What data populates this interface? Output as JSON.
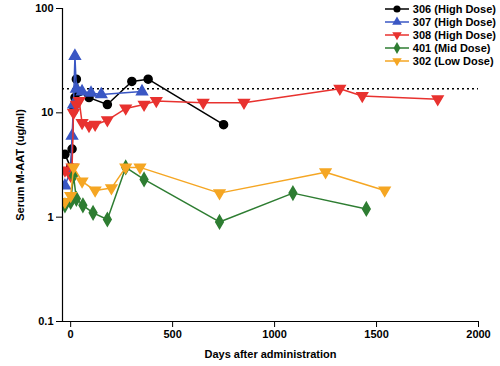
{
  "chart_data": {
    "type": "line",
    "xlabel": "Days after administration",
    "ylabel": "Serum M-AAT (ug/ml)",
    "log": "y",
    "legend": "top-right",
    "xlim": [
      -40,
      2000
    ],
    "xticks": [
      0,
      500,
      1000,
      1500,
      2000
    ],
    "ylim": [
      0.1,
      100
    ],
    "yticks": [
      0.1,
      1,
      10,
      100
    ],
    "reference_line": {
      "value": 17,
      "line_style": "dotted"
    },
    "series": [
      {
        "name": "306 (High Dose)",
        "color": "#000000",
        "marker": "circle",
        "x": [
          -28,
          0,
          7,
          14,
          21,
          28,
          42,
          90,
          180,
          300,
          380,
          750
        ],
        "values": [
          4,
          3,
          4.5,
          10.5,
          14,
          21,
          16,
          14,
          12,
          20,
          21,
          7.7
        ]
      },
      {
        "name": "307 (High Dose)",
        "color": "#3a57c4",
        "marker": "triangle",
        "x": [
          -28,
          0,
          7,
          14,
          21,
          28,
          56,
          100,
          150,
          350
        ],
        "values": [
          2,
          2.8,
          6,
          12,
          35,
          17,
          16,
          15.5,
          15,
          16
        ]
      },
      {
        "name": "308 (High Dose)",
        "color": "#e8322f",
        "marker": "triangle-down",
        "x": [
          -28,
          0,
          7,
          14,
          28,
          42,
          56,
          90,
          120,
          180,
          270,
          360,
          420,
          650,
          850,
          1320,
          1430,
          1800
        ],
        "values": [
          2.8,
          2.5,
          3,
          10,
          12,
          13,
          8,
          7.5,
          7.7,
          8.5,
          11,
          12,
          13,
          12.5,
          12.5,
          17,
          14.5,
          13.5
        ]
      },
      {
        "name": "401 (Mid Dose)",
        "color": "#2e7d32",
        "marker": "diamond",
        "x": [
          -28,
          0,
          14,
          28,
          60,
          110,
          180,
          270,
          360,
          730,
          1090,
          1450
        ],
        "values": [
          1.3,
          1.4,
          2.5,
          1.5,
          1.3,
          1.1,
          0.95,
          3,
          2.3,
          0.9,
          1.7,
          1.2
        ]
      },
      {
        "name": "302 (Low Dose)",
        "color": "#f5a623",
        "marker": "triangle-down",
        "x": [
          -28,
          0,
          14,
          56,
          120,
          200,
          270,
          340,
          730,
          1250,
          1540
        ],
        "values": [
          1.4,
          1.6,
          3,
          2.2,
          1.8,
          1.9,
          3,
          3,
          1.7,
          2.7,
          1.8
        ]
      }
    ]
  }
}
